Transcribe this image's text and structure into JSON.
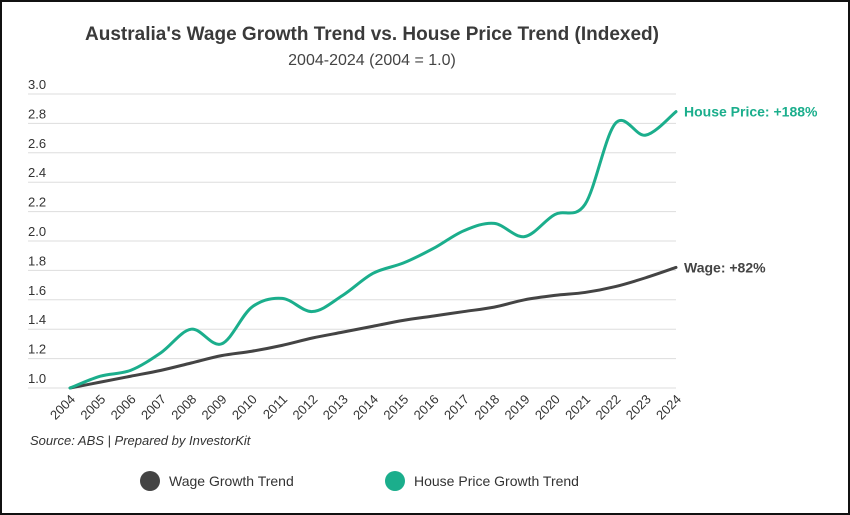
{
  "chart_data": {
    "type": "line",
    "title": "Australia's Wage Growth Trend vs. House Price Trend (Indexed)",
    "subtitle": "2004-2024 (2004 = 1.0)",
    "source": "Source: ABS | Prepared by InvestorKit",
    "x": [
      "2004",
      "2005",
      "2006",
      "2007",
      "2008",
      "2009",
      "2010",
      "2011",
      "2012",
      "2013",
      "2014",
      "2015",
      "2016",
      "2017",
      "2018",
      "2019",
      "2020",
      "2021",
      "2022",
      "2023",
      "2024"
    ],
    "y_ticks": [
      "1.0",
      "1.2",
      "1.4",
      "1.6",
      "1.8",
      "2.0",
      "2.2",
      "2.4",
      "2.6",
      "2.8",
      "3.0"
    ],
    "ylim": [
      1.0,
      3.0
    ],
    "grid": true,
    "legend_position": "bottom",
    "series": [
      {
        "name": "Wage Growth Trend",
        "color": "#444444",
        "end_label": "Wage: +82%",
        "values": [
          1.0,
          1.04,
          1.08,
          1.12,
          1.17,
          1.22,
          1.25,
          1.29,
          1.34,
          1.38,
          1.42,
          1.46,
          1.49,
          1.52,
          1.55,
          1.6,
          1.63,
          1.65,
          1.69,
          1.75,
          1.82
        ]
      },
      {
        "name": "House Price Growth Trend",
        "color": "#1bae8c",
        "end_label": "House Price: +188%",
        "values": [
          1.0,
          1.08,
          1.12,
          1.24,
          1.4,
          1.3,
          1.55,
          1.61,
          1.52,
          1.63,
          1.78,
          1.85,
          1.95,
          2.07,
          2.12,
          2.03,
          2.18,
          2.25,
          2.8,
          2.72,
          2.88
        ]
      }
    ]
  }
}
